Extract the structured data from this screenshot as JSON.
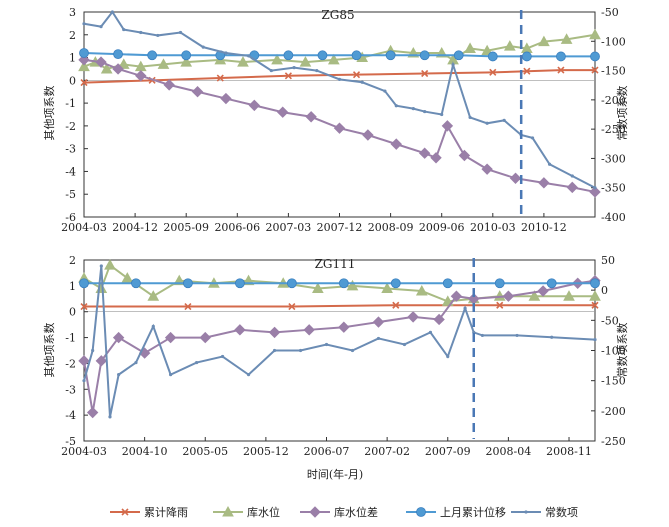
{
  "xlabel": "时间(年-月)",
  "legend": [
    {
      "name": "累计降雨",
      "color": "#d46a4b",
      "marker": "x"
    },
    {
      "name": "库水位",
      "color": "#a9bb83",
      "marker": "triangle"
    },
    {
      "name": "库水位差",
      "color": "#9a7fa8",
      "marker": "diamond"
    },
    {
      "name": "上月累计位移",
      "color": "#4f9ad3",
      "marker": "circle"
    },
    {
      "name": "常数项",
      "color": "#6b8cb4",
      "marker": "dot"
    }
  ],
  "chart_data": [
    {
      "type": "line",
      "title": "ZG85",
      "ylabel": "其他项系数",
      "y2label": "常数项系数",
      "ylim": [
        -6,
        3
      ],
      "y2lim": [
        -400,
        -50
      ],
      "x_range": [
        "2004-03",
        "2011-09"
      ],
      "xticks": [
        "2004-03",
        "2004-12",
        "2005-09",
        "2006-06",
        "2007-03",
        "2007-12",
        "2008-09",
        "2009-06",
        "2010-03",
        "2010-12"
      ],
      "yticks": [
        3,
        2,
        1,
        0,
        -1,
        -2,
        -3,
        -4,
        -5,
        -6
      ],
      "y2ticks": [
        -50,
        -100,
        -150,
        -200,
        -250,
        -300,
        -350,
        -400
      ],
      "divider": "2010-08",
      "series": [
        {
          "name": "累计降雨",
          "axis": "left",
          "x": [
            "2004-03",
            "2005-03",
            "2006-03",
            "2007-03",
            "2008-03",
            "2009-03",
            "2010-03",
            "2010-09",
            "2011-03",
            "2011-09"
          ],
          "values": [
            -0.1,
            0.0,
            0.1,
            0.2,
            0.25,
            0.3,
            0.35,
            0.4,
            0.45,
            0.45
          ]
        },
        {
          "name": "库水位",
          "axis": "left",
          "x": [
            "2004-03",
            "2004-05",
            "2004-07",
            "2004-10",
            "2005-01",
            "2005-05",
            "2005-09",
            "2006-03",
            "2006-07",
            "2007-01",
            "2007-06",
            "2007-11",
            "2008-04",
            "2008-09",
            "2009-01",
            "2009-06",
            "2009-08",
            "2009-11",
            "2010-02",
            "2010-06",
            "2010-09",
            "2010-12",
            "2011-04",
            "2011-09"
          ],
          "values": [
            0.6,
            0.8,
            0.5,
            0.7,
            0.6,
            0.7,
            0.8,
            0.9,
            0.8,
            0.9,
            0.8,
            0.9,
            1.0,
            1.3,
            1.2,
            1.2,
            0.9,
            1.4,
            1.3,
            1.5,
            1.4,
            1.7,
            1.8,
            2.0
          ]
        },
        {
          "name": "库水位差",
          "axis": "left",
          "x": [
            "2004-03",
            "2004-06",
            "2004-09",
            "2005-01",
            "2005-06",
            "2005-11",
            "2006-04",
            "2006-09",
            "2007-02",
            "2007-07",
            "2007-12",
            "2008-05",
            "2008-10",
            "2009-03",
            "2009-05",
            "2009-07",
            "2009-10",
            "2010-02",
            "2010-07",
            "2010-12",
            "2011-05",
            "2011-09"
          ],
          "values": [
            0.9,
            0.8,
            0.5,
            0.2,
            -0.2,
            -0.5,
            -0.8,
            -1.1,
            -1.4,
            -1.6,
            -2.1,
            -2.4,
            -2.8,
            -3.2,
            -3.4,
            -2.0,
            -3.3,
            -3.9,
            -4.3,
            -4.5,
            -4.7,
            -4.9
          ]
        },
        {
          "name": "上月累计位移",
          "axis": "left",
          "x": [
            "2004-03",
            "2004-09",
            "2005-03",
            "2005-09",
            "2006-03",
            "2006-09",
            "2007-03",
            "2007-09",
            "2008-03",
            "2008-09",
            "2009-03",
            "2009-09",
            "2010-03",
            "2010-09",
            "2011-03",
            "2011-09"
          ],
          "values": [
            1.2,
            1.15,
            1.1,
            1.1,
            1.1,
            1.1,
            1.1,
            1.1,
            1.1,
            1.1,
            1.1,
            1.1,
            1.05,
            1.05,
            1.05,
            1.05
          ]
        },
        {
          "name": "常数项",
          "axis": "right",
          "x": [
            "2004-03",
            "2004-06",
            "2004-08",
            "2004-10",
            "2005-01",
            "2005-04",
            "2005-08",
            "2005-12",
            "2006-04",
            "2006-08",
            "2006-12",
            "2007-04",
            "2007-08",
            "2007-12",
            "2008-04",
            "2008-08",
            "2008-10",
            "2009-01",
            "2009-03",
            "2009-06",
            "2009-08",
            "2009-11",
            "2010-02",
            "2010-05",
            "2010-08",
            "2010-10",
            "2011-01",
            "2011-05",
            "2011-09"
          ],
          "values": [
            -70,
            -75,
            -50,
            -80,
            -85,
            -90,
            -85,
            -110,
            -120,
            -125,
            -150,
            -145,
            -150,
            -165,
            -170,
            -185,
            -210,
            -215,
            -220,
            -225,
            -140,
            -230,
            -240,
            -235,
            -260,
            -265,
            -310,
            -330,
            -350
          ]
        }
      ]
    },
    {
      "type": "line",
      "title": "ZG111",
      "ylabel": "其他项系数",
      "y2label": "常数项系数",
      "ylim": [
        -5,
        2
      ],
      "y2lim": [
        -250,
        50
      ],
      "x_range": [
        "2004-03",
        "2009-02"
      ],
      "xticks": [
        "2004-03",
        "2004-10",
        "2005-05",
        "2005-12",
        "2006-07",
        "2007-02",
        "2007-09",
        "2008-04",
        "2008-11"
      ],
      "yticks": [
        2,
        1,
        0,
        -1,
        -2,
        -3,
        -4,
        -5
      ],
      "y2ticks": [
        50,
        0,
        -50,
        -100,
        -150,
        -200,
        -250
      ],
      "divider": "2007-12",
      "series": [
        {
          "name": "累计降雨",
          "axis": "left",
          "x": [
            "2004-03",
            "2005-03",
            "2006-03",
            "2007-03",
            "2008-03",
            "2009-02"
          ],
          "values": [
            0.2,
            0.2,
            0.2,
            0.25,
            0.25,
            0.25
          ]
        },
        {
          "name": "库水位",
          "axis": "left",
          "x": [
            "2004-03",
            "2004-05",
            "2004-06",
            "2004-08",
            "2004-11",
            "2005-02",
            "2005-06",
            "2005-10",
            "2006-02",
            "2006-06",
            "2006-10",
            "2007-02",
            "2007-06",
            "2007-09",
            "2007-12",
            "2008-03",
            "2008-07",
            "2008-11",
            "2009-02"
          ],
          "values": [
            1.3,
            0.9,
            1.8,
            1.3,
            0.6,
            1.2,
            1.1,
            1.2,
            1.1,
            0.9,
            1.0,
            0.9,
            0.8,
            0.4,
            0.5,
            0.6,
            0.6,
            0.6,
            0.6
          ]
        },
        {
          "name": "库水位差",
          "axis": "left",
          "x": [
            "2004-03",
            "2004-04",
            "2004-05",
            "2004-07",
            "2004-10",
            "2005-01",
            "2005-05",
            "2005-09",
            "2006-01",
            "2006-05",
            "2006-09",
            "2007-01",
            "2007-05",
            "2007-08",
            "2007-10",
            "2007-12",
            "2008-04",
            "2008-08",
            "2008-12",
            "2009-02"
          ],
          "values": [
            -1.9,
            -3.9,
            -1.9,
            -1.0,
            -1.6,
            -1.0,
            -1.0,
            -0.7,
            -0.8,
            -0.7,
            -0.6,
            -0.4,
            -0.2,
            -0.3,
            0.6,
            0.5,
            0.6,
            0.8,
            1.1,
            1.2
          ]
        },
        {
          "name": "上月累计位移",
          "axis": "left",
          "x": [
            "2004-03",
            "2004-09",
            "2005-03",
            "2005-09",
            "2006-03",
            "2006-09",
            "2007-03",
            "2007-09",
            "2008-03",
            "2008-09",
            "2009-02"
          ],
          "values": [
            1.1,
            1.1,
            1.1,
            1.1,
            1.1,
            1.1,
            1.1,
            1.1,
            1.1,
            1.1,
            1.1
          ]
        },
        {
          "name": "常数项",
          "axis": "right",
          "x": [
            "2004-03",
            "2004-04",
            "2004-05",
            "2004-06",
            "2004-07",
            "2004-09",
            "2004-11",
            "2005-01",
            "2005-04",
            "2005-07",
            "2005-10",
            "2006-01",
            "2006-04",
            "2006-07",
            "2006-10",
            "2007-01",
            "2007-04",
            "2007-07",
            "2007-09",
            "2007-11",
            "2007-12",
            "2008-01",
            "2008-05",
            "2008-09",
            "2009-02"
          ],
          "values": [
            -150,
            -100,
            40,
            -210,
            -140,
            -120,
            -60,
            -140,
            -120,
            -110,
            -140,
            -100,
            -100,
            -90,
            -100,
            -80,
            -90,
            -70,
            -110,
            -30,
            -70,
            -75,
            -75,
            -78,
            -82
          ]
        }
      ]
    }
  ]
}
